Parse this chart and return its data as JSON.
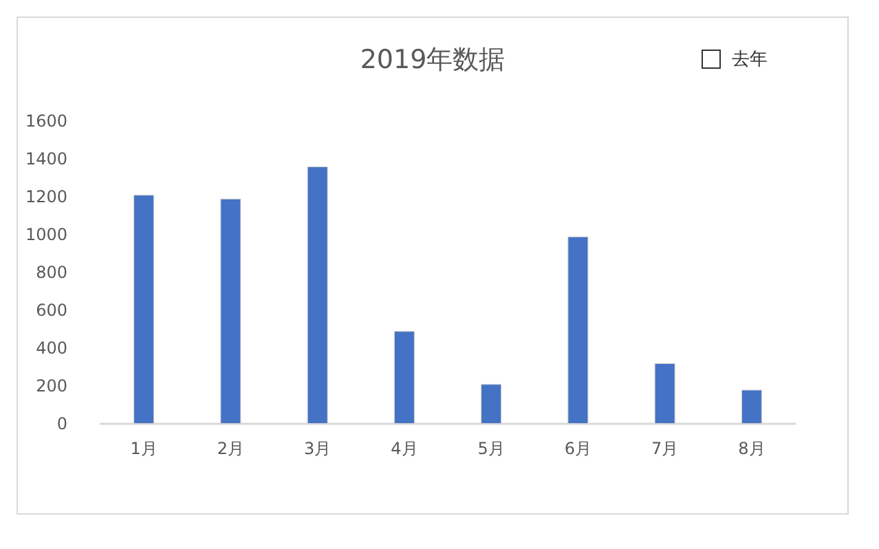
{
  "chart_data": {
    "type": "bar",
    "title": "2019年数据",
    "categories": [
      "1月",
      "2月",
      "3月",
      "4月",
      "5月",
      "6月",
      "7月",
      "8月"
    ],
    "values": [
      1210,
      1190,
      1360,
      490,
      210,
      990,
      320,
      180
    ],
    "color": "#4472c4",
    "ylim": [
      0,
      1600
    ],
    "yticks": [
      0,
      200,
      400,
      600,
      800,
      1000,
      1200,
      1400,
      1600
    ],
    "grid": false,
    "annotations": [
      "去年"
    ]
  }
}
